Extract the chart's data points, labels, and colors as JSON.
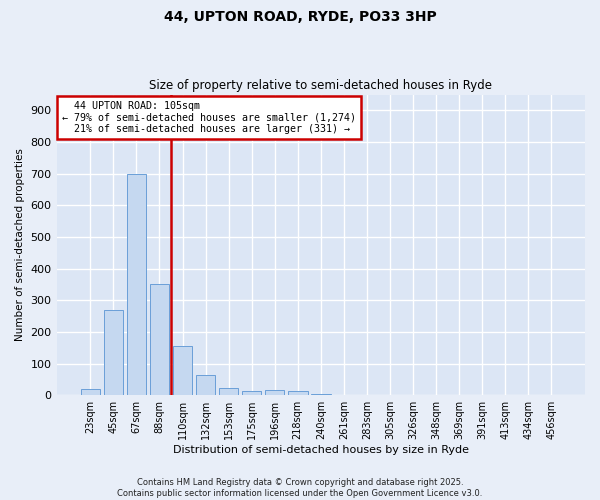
{
  "title": "44, UPTON ROAD, RYDE, PO33 3HP",
  "subtitle": "Size of property relative to semi-detached houses in Ryde",
  "xlabel": "Distribution of semi-detached houses by size in Ryde",
  "ylabel": "Number of semi-detached properties",
  "bar_labels": [
    "23sqm",
    "45sqm",
    "67sqm",
    "88sqm",
    "110sqm",
    "132sqm",
    "153sqm",
    "175sqm",
    "196sqm",
    "218sqm",
    "240sqm",
    "261sqm",
    "283sqm",
    "305sqm",
    "326sqm",
    "348sqm",
    "369sqm",
    "391sqm",
    "413sqm",
    "434sqm",
    "456sqm"
  ],
  "bar_values": [
    20,
    270,
    700,
    350,
    155,
    65,
    22,
    12,
    15,
    14,
    5,
    0,
    0,
    0,
    0,
    0,
    0,
    0,
    0,
    0,
    0
  ],
  "bar_color": "#c5d8f0",
  "bar_edgecolor": "#6a9fd8",
  "property_size": "105sqm",
  "pct_smaller": 79,
  "count_smaller": 1274,
  "pct_larger": 21,
  "count_larger": 331,
  "annotation_line_color": "#cc0000",
  "annotation_box_edgecolor": "#cc0000",
  "ylim": [
    0,
    950
  ],
  "yticks": [
    0,
    100,
    200,
    300,
    400,
    500,
    600,
    700,
    800,
    900
  ],
  "background_color": "#e8eef8",
  "plot_bg_color": "#dce6f5",
  "grid_color": "#ffffff",
  "footer": "Contains HM Land Registry data © Crown copyright and database right 2025.\nContains public sector information licensed under the Open Government Licence v3.0."
}
